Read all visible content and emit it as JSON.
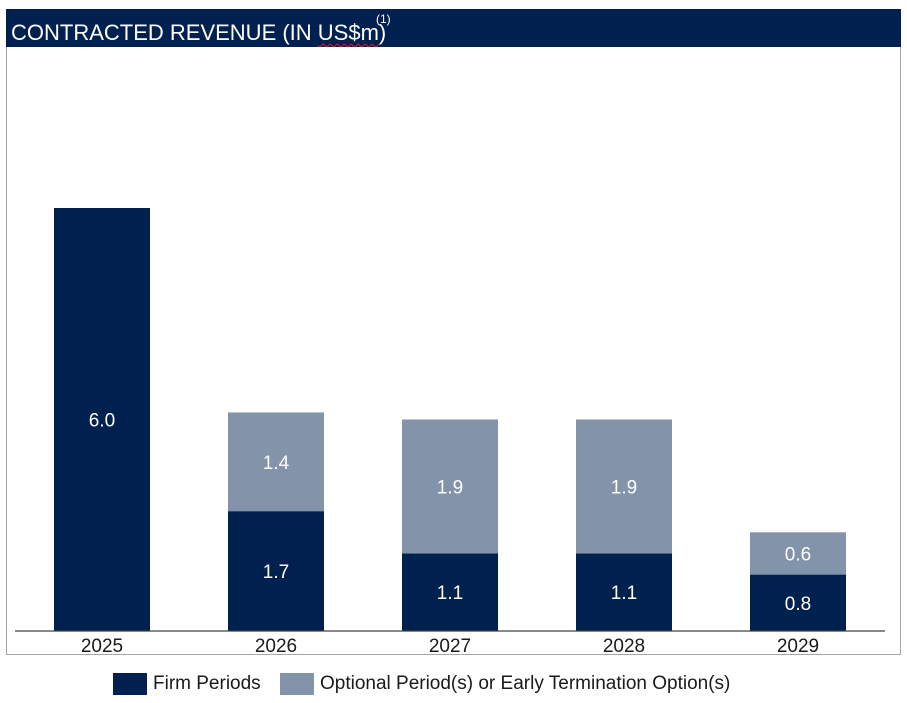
{
  "title": "CONTRACTED REVENUE (IN ",
  "title_unit": "US$m",
  "title_close": ")",
  "title_footnote": "(1)",
  "colors": {
    "header_bg": "#002050",
    "firm": "#002050",
    "optional": "#8393aa",
    "label": "#ffffff"
  },
  "chart_data": {
    "type": "bar",
    "stacked": true,
    "title": "CONTRACTED REVENUE (IN US$m)",
    "categories": [
      "2025",
      "2026",
      "2027",
      "2028",
      "2029"
    ],
    "series": [
      {
        "name": "Firm Periods",
        "values": [
          6.0,
          1.7,
          1.1,
          1.1,
          0.8
        ]
      },
      {
        "name": "Optional Period(s) or Early Termination Option(s)",
        "values": [
          0,
          1.4,
          1.9,
          1.9,
          0.6
        ]
      }
    ],
    "data_labels": [
      [
        "6.0",
        "1.7",
        "1.1",
        "1.1",
        "0.8"
      ],
      [
        "",
        "1.4",
        "1.9",
        "1.9",
        "0.6"
      ]
    ],
    "ylim": [
      0,
      8.2
    ],
    "grid": false,
    "y_axis_visible": false,
    "legend_position": "bottom"
  },
  "legend": {
    "firm_label": "Firm Periods",
    "optional_label": "Optional Period(s) or Early Termination Option(s)"
  }
}
